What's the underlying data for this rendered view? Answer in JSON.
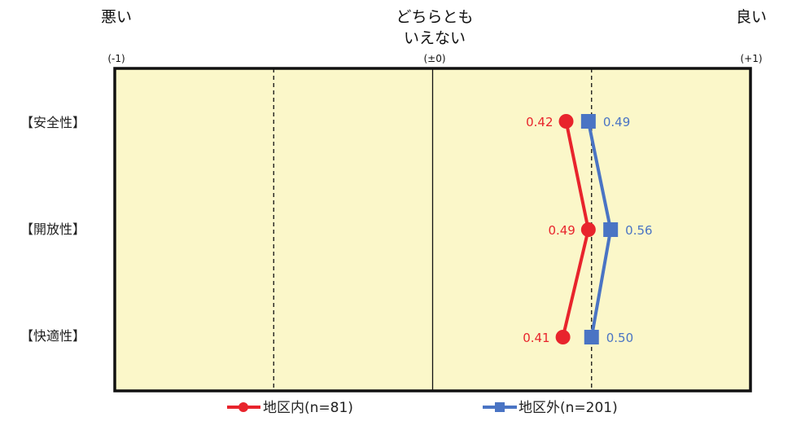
{
  "chart_data": {
    "type": "line",
    "orientation": "horizontal",
    "x_range": [
      -1,
      1
    ],
    "x_gridlines": [
      -0.5,
      0,
      0.5
    ],
    "x_gridline_styles": [
      "dashed",
      "solid",
      "dashed"
    ],
    "scale_labels": {
      "bad": "悪い",
      "neutral_line1": "どちらとも",
      "neutral_line2": "いえない",
      "good": "良い",
      "minus_one": "(-1)",
      "zero": "(±0)",
      "plus_one": "(+1)"
    },
    "categories": [
      "【安全性】",
      "【開放性】",
      "【快適性】"
    ],
    "series": [
      {
        "name": "地区内(n=81)",
        "color": "#e8242c",
        "marker": "circle",
        "values": [
          0.42,
          0.49,
          0.41
        ],
        "value_labels": [
          "0.42",
          "0.49",
          "0.41"
        ]
      },
      {
        "name": "地区外(n=201)",
        "color": "#4a74c4",
        "marker": "square",
        "values": [
          0.49,
          0.56,
          0.5
        ],
        "value_labels": [
          "0.49",
          "0.56",
          "0.50"
        ]
      }
    ],
    "plot_background": "#fbf7c9",
    "legend_position": "bottom"
  }
}
